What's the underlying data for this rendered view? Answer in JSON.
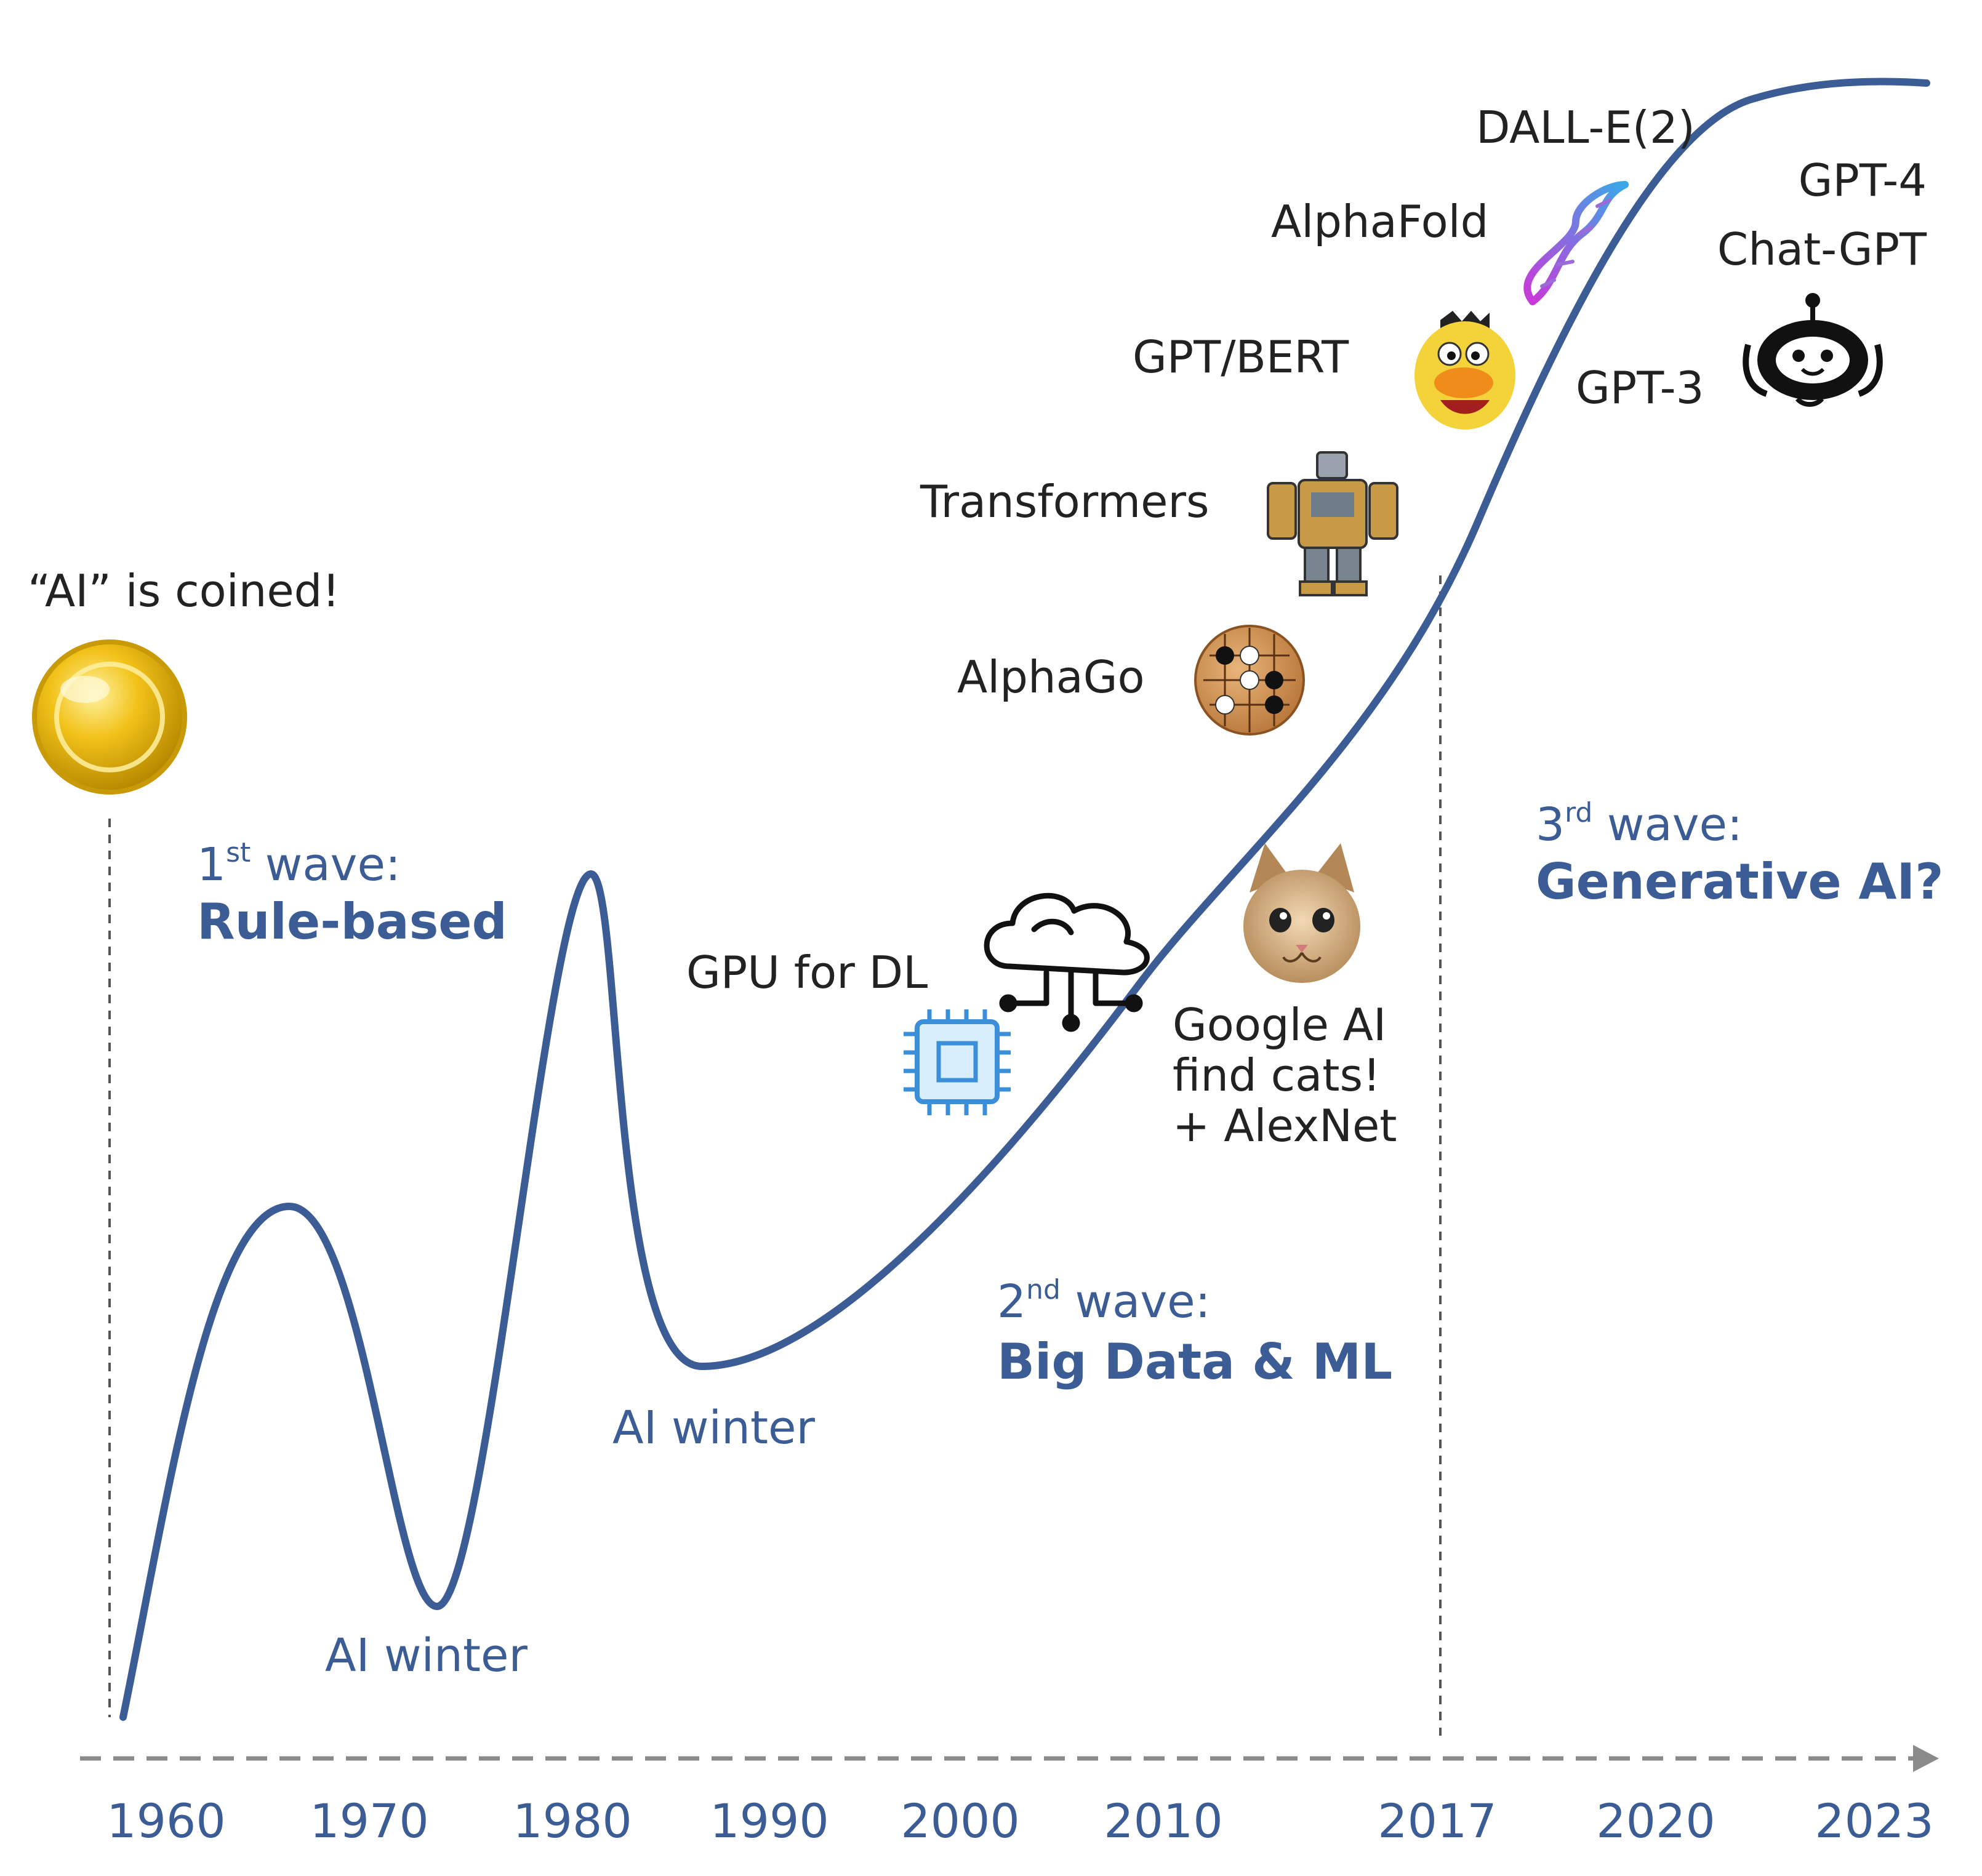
{
  "timeline": {
    "years": [
      "1960",
      "1970",
      "1980",
      "1990",
      "2000",
      "2010",
      "2017",
      "2020",
      "2023"
    ]
  },
  "milestones": {
    "ai_coined": "“AI” is coined!",
    "gpu_for_dl": "GPU for DL",
    "google_ai": [
      "Google AI",
      "find cats!",
      "+ AlexNet"
    ],
    "alphago": "AlphaGo",
    "transformers": "Transformers",
    "gpt_bert": "GPT/BERT",
    "alphafold": "AlphaFold",
    "dalle": "DALL-E(2)",
    "gpt3": "GPT-3",
    "gpt4": "GPT-4",
    "chatgpt": "Chat-GPT"
  },
  "waves": {
    "first": {
      "ordinal": "1",
      "suffix": "st",
      "label": " wave:",
      "title": "Rule-based"
    },
    "second": {
      "ordinal": "2",
      "suffix": "nd",
      "label": " wave:",
      "title": "Big Data & ML"
    },
    "third": {
      "ordinal": "3",
      "suffix": "rd",
      "label": " wave:",
      "title": "Generative AI?"
    }
  },
  "winters": {
    "first": "AI winter",
    "second": "AI winter"
  },
  "icons": [
    "gold-coin-icon",
    "cloud-circuit-icon",
    "microchip-icon",
    "cat-icon",
    "go-board-icon",
    "robot-icon",
    "bert-muppet-icon",
    "dna-helix-icon",
    "chatbot-icon"
  ],
  "colors": {
    "curve": "#3b5c94",
    "wave_text": "#3b5c94",
    "axis": "#8a8a8a",
    "label_text": "#222222",
    "coin": "#f2c21a"
  }
}
